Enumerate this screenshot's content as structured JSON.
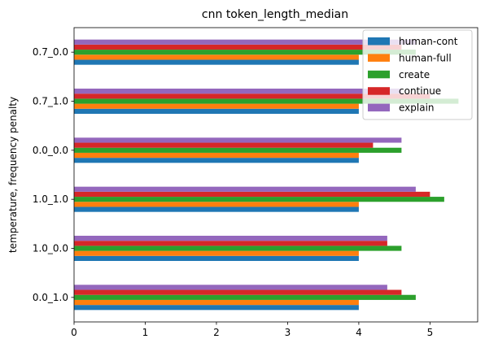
{
  "chart_data": {
    "type": "bar",
    "orientation": "horizontal",
    "title": "cnn token_length_median",
    "xlabel": "",
    "ylabel": "temperature, frequency penalty",
    "categories": [
      "0.0_1.0",
      "1.0_0.0",
      "1.0_1.0",
      "0.0_0.0",
      "0.7_1.0",
      "0.7_0.0"
    ],
    "xlim": [
      0,
      5.67
    ],
    "xticks": [
      0,
      1,
      2,
      3,
      4,
      5
    ],
    "grid": false,
    "legend_position": "top-right",
    "series": [
      {
        "name": "human-cont",
        "color": "#1f77b4",
        "values": [
          4,
          4,
          4,
          4,
          4,
          4
        ]
      },
      {
        "name": "human-full",
        "color": "#ff7f0e",
        "values": [
          4,
          4,
          4,
          4,
          4,
          4
        ]
      },
      {
        "name": "create",
        "color": "#2ca02c",
        "values": [
          4.8,
          4.6,
          5.2,
          4.6,
          5.4,
          4.8
        ]
      },
      {
        "name": "continue",
        "color": "#d62728",
        "values": [
          4.6,
          4.4,
          5.0,
          4.2,
          5.0,
          4.6
        ]
      },
      {
        "name": "explain",
        "color": "#9467bd",
        "values": [
          4.4,
          4.4,
          4.8,
          4.6,
          4.6,
          4.8
        ]
      }
    ]
  }
}
